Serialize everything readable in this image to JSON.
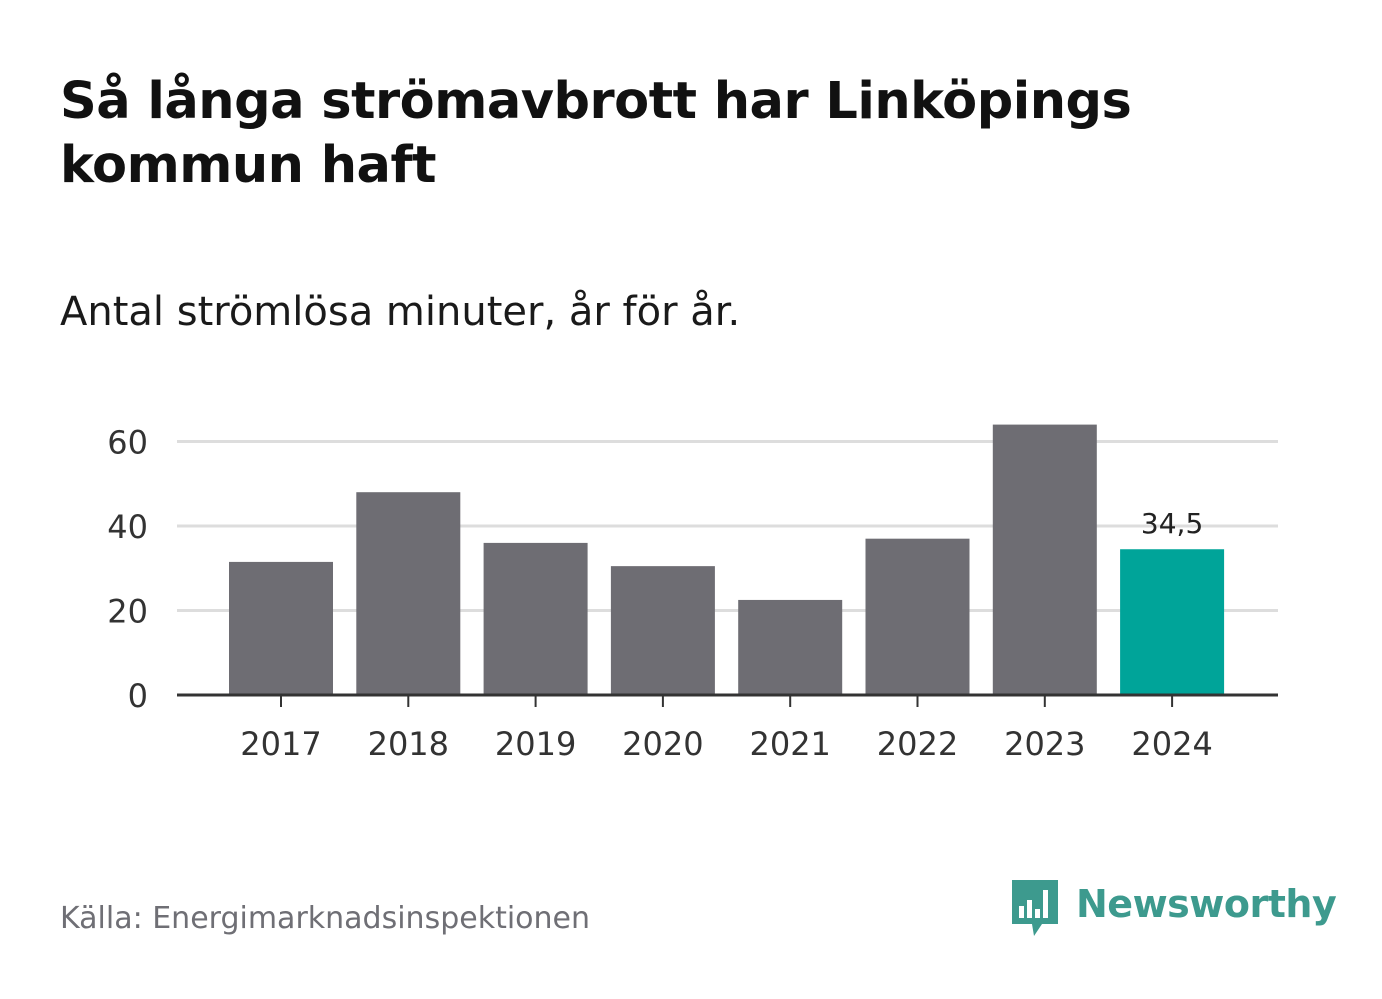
{
  "title": "Så långa strömavbrott har Linköpings kommun haft",
  "subtitle": "Antal strömlösa minuter, år för år.",
  "source": "Källa: Energimarknadsinspektionen",
  "brand": {
    "name": "Newsworthy",
    "icon": "newsworthy-logo-icon"
  },
  "colors": {
    "bar": "#6e6d73",
    "highlight": "#00a499",
    "gridline": "#dddddd",
    "axis": "#333333",
    "text": "#333333",
    "brand": "#3d9a8e"
  },
  "chart_data": {
    "type": "bar",
    "categories": [
      "2017",
      "2018",
      "2019",
      "2020",
      "2021",
      "2022",
      "2023",
      "2024"
    ],
    "values": [
      31.5,
      48,
      36,
      30.5,
      22.5,
      37,
      64,
      34.5
    ],
    "highlight_index": 7,
    "data_labels": [
      {
        "index": 7,
        "text": "34,5"
      }
    ],
    "title": "Så långa strömavbrott har Linköpings kommun haft",
    "subtitle": "Antal strömlösa minuter, år för år.",
    "xlabel": "",
    "ylabel": "",
    "yticks": [
      0,
      20,
      40,
      60
    ],
    "ytick_labels": [
      "0",
      "20",
      "40",
      "60"
    ],
    "ylim": [
      0,
      60
    ],
    "grid": true,
    "legend": "none"
  }
}
